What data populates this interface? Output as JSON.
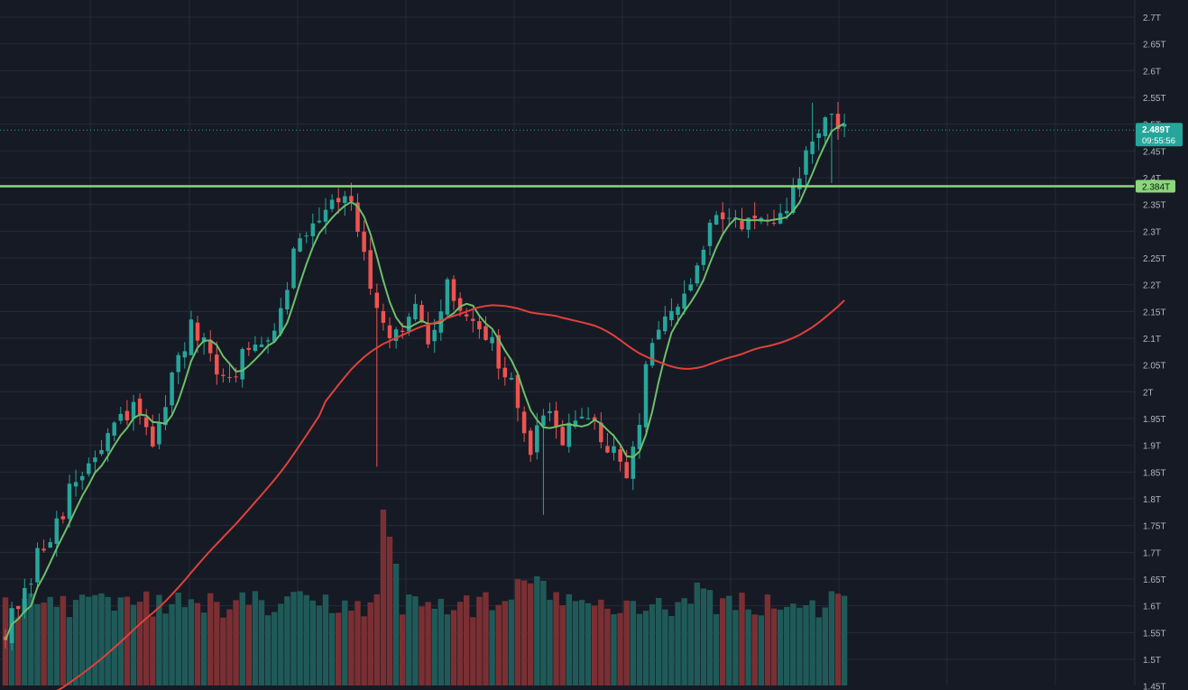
{
  "chart_data": {
    "type": "candlestick",
    "y_axis": {
      "position": "right",
      "min": 1.45,
      "max": 2.72,
      "tick_values": [
        1.5,
        1.55,
        1.6,
        1.65,
        1.7,
        1.75,
        1.8,
        1.85,
        1.9,
        1.95,
        2.0,
        2.05,
        2.1,
        2.15,
        2.2,
        2.25,
        2.3,
        2.35,
        2.4,
        2.45,
        2.5,
        2.55,
        2.6,
        2.65,
        2.7
      ],
      "tick_labels": [
        "1.5T",
        "1.55T",
        "1.6T",
        "1.65T",
        "1.7T",
        "1.75T",
        "1.8T",
        "1.85T",
        "1.9T",
        "1.95T",
        "2T",
        "2.05T",
        "2.1T",
        "2.15T",
        "2.2T",
        "2.25T",
        "2.3T",
        "2.35T",
        "2.4T",
        "2.45T",
        "2.5T",
        "2.55T",
        "2.6T",
        "2.65T",
        "2.7T"
      ],
      "partial_bottom_label": "1.45T"
    },
    "grid": true,
    "candle_count": 132,
    "ohlc": [],
    "waypoints_close": [
      [
        0,
        1.56
      ],
      [
        4,
        1.6
      ],
      [
        8,
        1.7
      ],
      [
        12,
        1.77
      ],
      [
        18,
        1.85
      ],
      [
        24,
        1.92
      ],
      [
        30,
        1.97
      ],
      [
        33,
        1.9
      ],
      [
        38,
        2.02
      ],
      [
        43,
        2.12
      ],
      [
        47,
        2.05
      ],
      [
        50,
        2.02
      ],
      [
        55,
        2.07
      ],
      [
        58,
        2.09
      ],
      [
        62,
        2.14
      ],
      [
        66,
        2.26
      ],
      [
        70,
        2.32
      ],
      [
        74,
        2.36
      ],
      [
        79,
        2.38
      ],
      [
        84,
        2.16
      ],
      [
        88,
        2.08
      ],
      [
        94,
        2.15
      ],
      [
        97,
        2.1
      ],
      [
        101,
        2.19
      ],
      [
        105,
        2.15
      ],
      [
        109,
        2.13
      ],
      [
        116,
        2.0
      ],
      [
        120,
        1.89
      ],
      [
        124,
        1.95
      ],
      [
        128,
        1.92
      ],
      [
        131,
        1.96
      ],
      [
        134,
        1.93
      ],
      [
        138,
        1.9
      ],
      [
        141,
        1.84
      ],
      [
        145,
        1.92
      ],
      [
        147,
        2.08
      ],
      [
        152,
        2.13
      ],
      [
        157,
        2.2
      ],
      [
        161,
        2.3
      ],
      [
        167,
        2.33
      ],
      [
        172,
        2.32
      ],
      [
        176,
        2.29
      ],
      [
        180,
        2.37
      ],
      [
        184,
        2.46
      ],
      [
        188,
        2.52
      ],
      [
        192,
        2.49
      ]
    ],
    "series": [
      {
        "name": "",
        "kind": "short_ma",
        "color": "#6cbf6a"
      },
      {
        "name": "",
        "kind": "long_ma",
        "color": "#e0413a"
      }
    ],
    "horizontal_line": {
      "value": 2.384,
      "color": "#8cd67c",
      "label": "2.384T"
    },
    "last_price": {
      "value": 2.489,
      "label": "2.489T",
      "countdown": "09:55:56",
      "color": "#26a69a"
    },
    "volume": {
      "shown": true,
      "up_color": "#1f5a58",
      "down_color": "#7a2f33"
    },
    "colors": {
      "background": "#161a25",
      "grid": "#262b38",
      "up": "#26a69a",
      "down": "#ef5350",
      "axis_text": "#b2b5be"
    }
  }
}
